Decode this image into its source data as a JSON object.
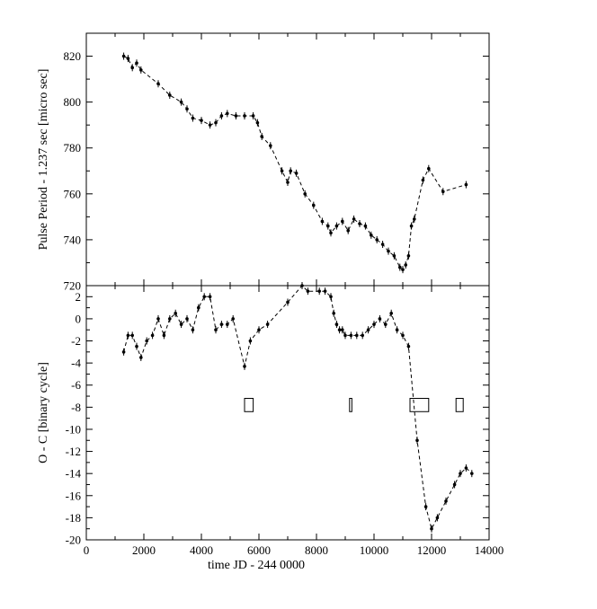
{
  "chart_data": [
    {
      "type": "line",
      "ylabel": "Pulse Period - 1.237 sec  [micro sec]",
      "xlim": [
        0,
        14000
      ],
      "ylim": [
        720,
        830
      ],
      "yticks": [
        720,
        740,
        760,
        780,
        800,
        820
      ],
      "line_style": "dashed",
      "marker": "dot with error bar",
      "series": [
        {
          "x": [
            1300,
            1450,
            1600,
            1750,
            1900,
            2500,
            2900,
            3300,
            3500,
            3700,
            4000,
            4300,
            4500,
            4700,
            4900,
            5200,
            5500,
            5800,
            5950,
            6100,
            6400,
            6800,
            7000,
            7100,
            7300,
            7600,
            7900,
            8200,
            8400,
            8500,
            8700,
            8900,
            9100,
            9300,
            9500,
            9700,
            9900,
            10100,
            10300,
            10500,
            10700,
            10900,
            11000,
            11100,
            11200,
            11300,
            11400,
            11700,
            11900,
            12400,
            13200
          ],
          "y": [
            820,
            819,
            815,
            817,
            814,
            808,
            803,
            800,
            797,
            793,
            792,
            790,
            791,
            794,
            795,
            794,
            794,
            794,
            791,
            785,
            781,
            770,
            765,
            770,
            769,
            760,
            755,
            748,
            746,
            743,
            746,
            748,
            744,
            749,
            747,
            746,
            742,
            740,
            738,
            735,
            733,
            728,
            727,
            729,
            733,
            746,
            749,
            766,
            771,
            761,
            764
          ]
        }
      ]
    },
    {
      "type": "line",
      "xlabel": "time  JD - 244 0000",
      "ylabel": "O - C  [binary cycle]",
      "xlim": [
        0,
        14000
      ],
      "ylim": [
        -20,
        3
      ],
      "xticks": [
        0,
        2000,
        4000,
        6000,
        8000,
        10000,
        12000,
        14000
      ],
      "yticks": [
        -20,
        -18,
        -16,
        -14,
        -12,
        -10,
        -8,
        -6,
        -4,
        -2,
        0,
        2
      ],
      "line_style": "dashed",
      "marker": "dot with error bar",
      "series": [
        {
          "x": [
            1300,
            1450,
            1600,
            1750,
            1900,
            2100,
            2300,
            2500,
            2700,
            2900,
            3100,
            3300,
            3500,
            3700,
            3900,
            4100,
            4300,
            4500,
            4700,
            4900,
            5100,
            5500,
            5700,
            6000,
            6300,
            7000,
            7500,
            7700,
            8100,
            8300,
            8500,
            8600,
            8700,
            8800,
            8900,
            9000,
            9200,
            9400,
            9600,
            9800,
            10000,
            10200,
            10400,
            10600,
            10800,
            11000,
            11200,
            11500,
            11800,
            12000,
            12200,
            12500,
            12800,
            13000,
            13200,
            13400
          ],
          "y": [
            -3,
            -1.5,
            -1.5,
            -2.5,
            -3.5,
            -2,
            -1.5,
            0,
            -1.5,
            0,
            0.5,
            -0.5,
            0,
            -1,
            1,
            2,
            2,
            -1,
            -0.5,
            -0.5,
            0,
            -4.3,
            -2,
            -1,
            -0.5,
            1.5,
            3,
            2.5,
            2.5,
            2.5,
            2,
            0.5,
            -0.5,
            -1,
            -1,
            -1.5,
            -1.5,
            -1.5,
            -1.5,
            -1,
            -0.5,
            0,
            -0.5,
            0.5,
            -1,
            -1.5,
            -2.5,
            -11,
            -17,
            -19,
            -18,
            -16.5,
            -15,
            -14,
            -13.5,
            -14
          ]
        }
      ],
      "windows": [
        {
          "x0": 5500,
          "x1": 5800,
          "y0": -8.4,
          "y1": -7.2
        },
        {
          "x0": 9150,
          "x1": 9230,
          "y0": -8.4,
          "y1": -7.2
        },
        {
          "x0": 11250,
          "x1": 11900,
          "y0": -8.4,
          "y1": -7.2
        },
        {
          "x0": 12850,
          "x1": 13100,
          "y0": -8.4,
          "y1": -7.2
        }
      ]
    }
  ]
}
